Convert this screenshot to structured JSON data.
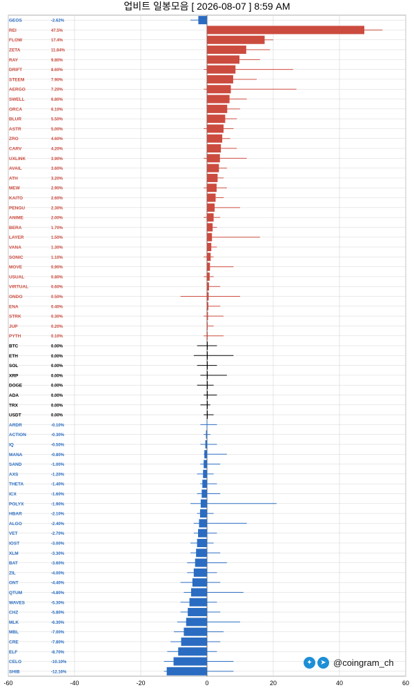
{
  "title": "업비트 일봉모음 [ 2026-08-07 ]  8:59 AM",
  "watermark": "@coingram_ch",
  "colors": {
    "up": "#cc4b3f",
    "flat": "#000000",
    "down": "#2a6cc1",
    "grid": "#d4d4d4"
  },
  "chart_data": {
    "type": "bar",
    "orientation": "horizontal",
    "title": "업비트 일봉모음 [ 2026-08-07 ]  8:59 AM",
    "xlim": [
      -60,
      60
    ],
    "xticks": [
      -60,
      -40,
      -20,
      0,
      20,
      40,
      60
    ],
    "grid": true,
    "legend": "none",
    "rows": [
      {
        "name": "GEOS",
        "change": -2.62,
        "low": -5,
        "high": -2,
        "label": "-2.62%"
      },
      {
        "name": "REI",
        "change": 47.5,
        "low": 0,
        "high": 53,
        "label": "47.5%"
      },
      {
        "name": "FLOW",
        "change": 17.4,
        "low": 1,
        "high": 20,
        "label": "17.4%"
      },
      {
        "name": "ZETA",
        "change": 11.84,
        "low": 0,
        "high": 19,
        "label": "11.84%"
      },
      {
        "name": "RAY",
        "change": 9.8,
        "low": 0,
        "high": 16,
        "label": "9.80%"
      },
      {
        "name": "DRIFT",
        "change": 8.6,
        "low": -1,
        "high": 26,
        "label": "8.60%"
      },
      {
        "name": "STEEM",
        "change": 7.9,
        "low": 0,
        "high": 15,
        "label": "7.90%"
      },
      {
        "name": "AERGO",
        "change": 7.2,
        "low": -1,
        "high": 27,
        "label": "7.20%"
      },
      {
        "name": "SWELL",
        "change": 6.8,
        "low": 0,
        "high": 12,
        "label": "6.80%"
      },
      {
        "name": "ORCA",
        "change": 6.1,
        "low": 0,
        "high": 10,
        "label": "6.10%"
      },
      {
        "name": "BLUR",
        "change": 5.5,
        "low": 0,
        "high": 9,
        "label": "5.50%"
      },
      {
        "name": "ASTR",
        "change": 5.0,
        "low": -1,
        "high": 8,
        "label": "5.00%"
      },
      {
        "name": "ZRO",
        "change": 4.6,
        "low": 0,
        "high": 7,
        "label": "4.60%"
      },
      {
        "name": "CARV",
        "change": 4.2,
        "low": 0,
        "high": 9,
        "label": "4.20%"
      },
      {
        "name": "UXLINK",
        "change": 3.9,
        "low": -1,
        "high": 12,
        "label": "3.90%"
      },
      {
        "name": "AVAIL",
        "change": 3.6,
        "low": 0,
        "high": 6,
        "label": "3.60%"
      },
      {
        "name": "ATH",
        "change": 3.2,
        "low": 0,
        "high": 5,
        "label": "3.20%"
      },
      {
        "name": "MEW",
        "change": 2.9,
        "low": -1,
        "high": 6,
        "label": "2.90%"
      },
      {
        "name": "KAITO",
        "change": 2.6,
        "low": 0,
        "high": 5,
        "label": "2.60%"
      },
      {
        "name": "PENGU",
        "change": 2.3,
        "low": 0,
        "high": 10,
        "label": "2.30%"
      },
      {
        "name": "ANIME",
        "change": 2.0,
        "low": -1,
        "high": 4,
        "label": "2.00%"
      },
      {
        "name": "BERA",
        "change": 1.7,
        "low": 0,
        "high": 3,
        "label": "1.70%"
      },
      {
        "name": "LAYER",
        "change": 1.5,
        "low": 0,
        "high": 16,
        "label": "1.50%"
      },
      {
        "name": "VANA",
        "change": 1.3,
        "low": 0,
        "high": 3,
        "label": "1.30%"
      },
      {
        "name": "SONIC",
        "change": 1.1,
        "low": -1,
        "high": 2,
        "label": "1.10%"
      },
      {
        "name": "MOVE",
        "change": 0.9,
        "low": 0,
        "high": 8,
        "label": "0.90%"
      },
      {
        "name": "USUAL",
        "change": 0.8,
        "low": -1,
        "high": 2,
        "label": "0.80%"
      },
      {
        "name": "VIRTUAL",
        "change": 0.6,
        "low": 0,
        "high": 4,
        "label": "0.60%"
      },
      {
        "name": "ONDO",
        "change": 0.5,
        "low": -8,
        "high": 10,
        "label": "0.50%"
      },
      {
        "name": "ENA",
        "change": 0.4,
        "low": 0,
        "high": 4,
        "label": "0.40%"
      },
      {
        "name": "STRK",
        "change": 0.3,
        "low": -1,
        "high": 5,
        "label": "0.30%"
      },
      {
        "name": "JUP",
        "change": 0.2,
        "low": 0,
        "high": 2,
        "label": "0.20%"
      },
      {
        "name": "PYTH",
        "change": 0.1,
        "low": -1,
        "high": 5,
        "label": "0.10%"
      },
      {
        "name": "BTC",
        "change": 0.0,
        "low": -3,
        "high": 3,
        "label": "0.00%"
      },
      {
        "name": "ETH",
        "change": 0.0,
        "low": -4,
        "high": 8,
        "label": "0.00%"
      },
      {
        "name": "SOL",
        "change": 0.0,
        "low": -3,
        "high": 3,
        "label": "0.00%"
      },
      {
        "name": "XRP",
        "change": 0.0,
        "low": -2,
        "high": 6,
        "label": "0.00%"
      },
      {
        "name": "DOGE",
        "change": 0.0,
        "low": -3,
        "high": 2,
        "label": "0.00%"
      },
      {
        "name": "ADA",
        "change": 0.0,
        "low": -1,
        "high": 3,
        "label": "0.00%"
      },
      {
        "name": "TRX",
        "change": 0.0,
        "low": -2,
        "high": 1,
        "label": "0.00%"
      },
      {
        "name": "USDT",
        "change": 0.0,
        "low": -1,
        "high": 2,
        "label": "0.00%"
      },
      {
        "name": "ARDR",
        "change": -0.1,
        "low": -2,
        "high": 3,
        "label": "-0.10%"
      },
      {
        "name": "ACTION",
        "change": -0.3,
        "low": -1,
        "high": 1,
        "label": "-0.30%"
      },
      {
        "name": "IQ",
        "change": -0.5,
        "low": -2,
        "high": 3,
        "label": "-0.50%"
      },
      {
        "name": "MANA",
        "change": -0.8,
        "low": -1,
        "high": 6,
        "label": "-0.80%"
      },
      {
        "name": "SAND",
        "change": -1.0,
        "low": -2,
        "high": 4,
        "label": "-1.00%"
      },
      {
        "name": "AXS",
        "change": -1.2,
        "low": -3,
        "high": 2,
        "label": "-1.20%"
      },
      {
        "name": "THETA",
        "change": -1.4,
        "low": -2,
        "high": 3,
        "label": "-1.40%"
      },
      {
        "name": "ICX",
        "change": -1.6,
        "low": -3,
        "high": 4,
        "label": "-1.60%"
      },
      {
        "name": "POLYX",
        "change": -1.9,
        "low": -5,
        "high": 21,
        "label": "-1.90%"
      },
      {
        "name": "HBAR",
        "change": -2.1,
        "low": -3,
        "high": 2,
        "label": "-2.10%"
      },
      {
        "name": "ALGO",
        "change": -2.4,
        "low": -4,
        "high": 12,
        "label": "-2.40%"
      },
      {
        "name": "VET",
        "change": -2.7,
        "low": -4,
        "high": 3,
        "label": "-2.70%"
      },
      {
        "name": "IOST",
        "change": -3.0,
        "low": -5,
        "high": 2,
        "label": "-3.00%"
      },
      {
        "name": "XLM",
        "change": -3.3,
        "low": -5,
        "high": 4,
        "label": "-3.30%"
      },
      {
        "name": "BAT",
        "change": -3.6,
        "low": -6,
        "high": 6,
        "label": "-3.60%"
      },
      {
        "name": "ZIL",
        "change": -4.0,
        "low": -6,
        "high": 3,
        "label": "-4.00%"
      },
      {
        "name": "ONT",
        "change": -4.4,
        "low": -8,
        "high": 4,
        "label": "-4.40%"
      },
      {
        "name": "QTUM",
        "change": -4.8,
        "low": -7,
        "high": 11,
        "label": "-4.80%"
      },
      {
        "name": "WAVES",
        "change": -5.3,
        "low": -8,
        "high": 3,
        "label": "-5.30%"
      },
      {
        "name": "CHZ",
        "change": -5.8,
        "low": -8,
        "high": 4,
        "label": "-5.80%"
      },
      {
        "name": "MLK",
        "change": -6.3,
        "low": -9,
        "high": 10,
        "label": "-6.30%"
      },
      {
        "name": "MBL",
        "change": -7.0,
        "low": -10,
        "high": 5,
        "label": "-7.00%"
      },
      {
        "name": "CRE",
        "change": -7.8,
        "low": -11,
        "high": 4,
        "label": "-7.80%"
      },
      {
        "name": "ELF",
        "change": -8.7,
        "low": -12,
        "high": 3,
        "label": "-8.70%"
      },
      {
        "name": "CELO",
        "change": -10.1,
        "low": -13,
        "high": 8,
        "label": "-10.10%"
      },
      {
        "name": "SHIB",
        "change": -12.16,
        "low": -13,
        "high": 8,
        "label": "-12.16%"
      }
    ]
  }
}
